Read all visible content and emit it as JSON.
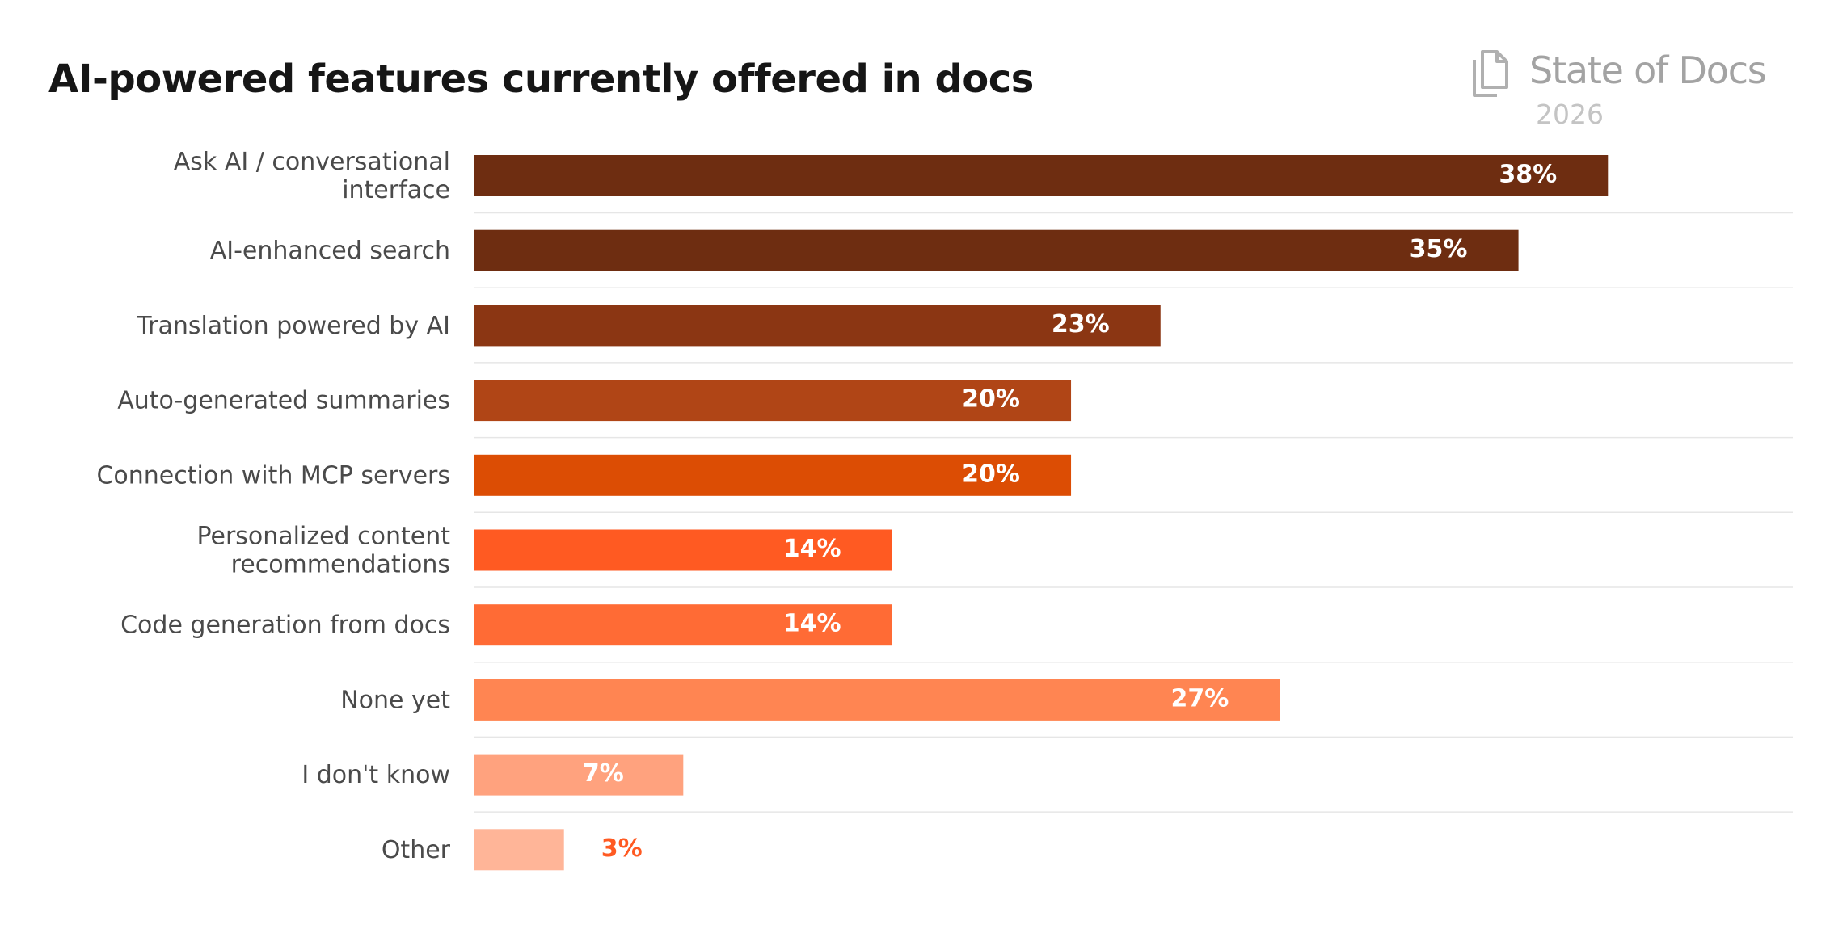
{
  "header": {
    "title": "AI-powered features currently offered in docs",
    "brand_name": "State of Docs",
    "brand_year": "2026"
  },
  "chart_data": {
    "type": "bar",
    "orientation": "horizontal",
    "title": "AI-powered features currently offered in docs",
    "categories": [
      "Ask AI / conversational interface",
      "AI-enhanced search",
      "Translation powered by AI",
      "Auto-generated summaries",
      "Connection with MCP servers",
      "Personalized content recommendations",
      "Code generation from docs",
      "None yet",
      "I don't know",
      "Other"
    ],
    "values": [
      38,
      35,
      23,
      20,
      20,
      14,
      14,
      27,
      7,
      3
    ],
    "value_labels": [
      "38%",
      "35%",
      "23%",
      "20%",
      "20%",
      "14%",
      "14%",
      "27%",
      "7%",
      "3%"
    ],
    "colors": [
      "#6e2d11",
      "#6e2d11",
      "#8b3613",
      "#b04516",
      "#dc4d04",
      "#ff5a22",
      "#ff6b35",
      "#ff8552",
      "#ffa27e",
      "#ffb598"
    ],
    "label_colors": [
      "#ffffff",
      "#ffffff",
      "#ffffff",
      "#ffffff",
      "#ffffff",
      "#ffffff",
      "#ffffff",
      "#ffffff",
      "#ffffff",
      "#ff5a22"
    ],
    "unit": "%",
    "xlim": [
      0,
      41
    ],
    "grid": false,
    "row_separators": true,
    "legend": "none"
  }
}
